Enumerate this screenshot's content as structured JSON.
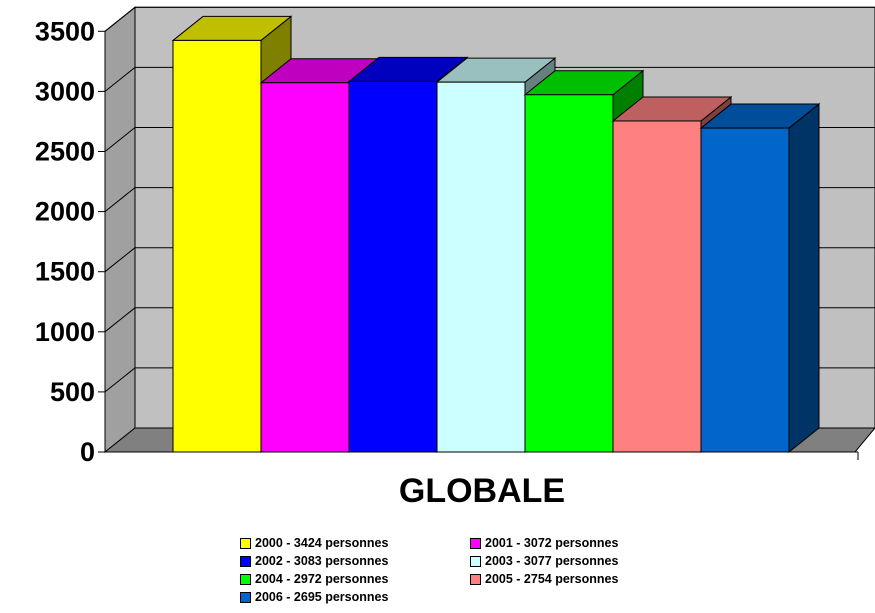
{
  "chart_data": {
    "type": "bar",
    "style": "3d",
    "categories": [
      "GLOBALE"
    ],
    "series": [
      {
        "name": "2000 - 3424 personnes",
        "values": [
          3424
        ],
        "color": "#FFFF00"
      },
      {
        "name": "2001 - 3072 personnes",
        "values": [
          3072
        ],
        "color": "#FF00FF"
      },
      {
        "name": "2002 - 3083 personnes",
        "values": [
          3083
        ],
        "color": "#0000FF"
      },
      {
        "name": "2003 - 3077 personnes",
        "values": [
          3077
        ],
        "color": "#CCFFFF"
      },
      {
        "name": "2004 - 2972 personnes",
        "values": [
          2972
        ],
        "color": "#00FF00"
      },
      {
        "name": "2005 - 2754 personnes",
        "values": [
          2754
        ],
        "color": "#FF8080"
      },
      {
        "name": "2006 - 2695 personnes",
        "values": [
          2695
        ],
        "color": "#0066CC"
      }
    ],
    "yticks": [
      "0",
      "500",
      "1000",
      "1500",
      "2000",
      "2500",
      "3000",
      "3500"
    ],
    "ylim": [
      0,
      3500
    ],
    "grid": true,
    "legend_position": "bottom",
    "wall_color": "#C0C0C0",
    "floor_color": "#808080"
  }
}
